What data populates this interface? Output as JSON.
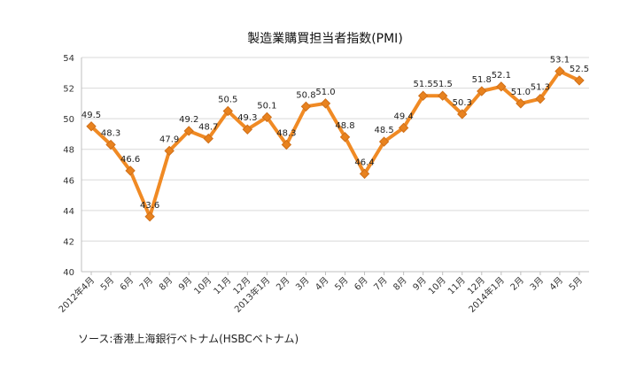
{
  "chart_data": {
    "type": "line",
    "title": "製造業購買担当者指数(PMI)",
    "xlabel": "",
    "ylabel": "",
    "ylim": [
      40,
      54
    ],
    "y_ticks": [
      40,
      42,
      44,
      46,
      48,
      50,
      52,
      54
    ],
    "grid": true,
    "legend": "none",
    "categories": [
      "2012年4月",
      "5月",
      "6月",
      "7月",
      "8月",
      "9月",
      "10月",
      "11月",
      "12月",
      "2013年1月",
      "2月",
      "3月",
      "4月",
      "5月",
      "6月",
      "7月",
      "8月",
      "9月",
      "10月",
      "11月",
      "12月",
      "2014年1月",
      "2月",
      "3月",
      "4月",
      "5月"
    ],
    "series": [
      {
        "values": [
          49.5,
          48.3,
          46.6,
          43.6,
          47.9,
          49.2,
          48.7,
          50.5,
          49.3,
          50.1,
          48.3,
          50.8,
          51.0,
          48.8,
          46.4,
          48.5,
          49.4,
          51.5,
          51.5,
          50.3,
          51.8,
          52.1,
          51.0,
          51.3,
          53.1,
          52.5
        ],
        "labels": [
          "49.5",
          "48.3",
          "46.6",
          "43.6",
          "47.9",
          "49.2",
          "48.7",
          "50.5",
          "49.3",
          "50.1",
          "48.3",
          "50.8",
          "51.0",
          "48.8",
          "46.4",
          "48.5",
          "49.4",
          "51.5",
          "51.5",
          "50.3",
          "51.8",
          "52.1",
          "51.0",
          "51.3",
          "53.1",
          "52.5"
        ]
      }
    ]
  },
  "colors": {
    "line": "#F08A24",
    "marker": "#E8821E",
    "grid": "#d9d9d9",
    "axis": "#bfbfbf"
  },
  "source_note": "ソース:香港上海銀行ベトナム(HSBCベトナム)"
}
